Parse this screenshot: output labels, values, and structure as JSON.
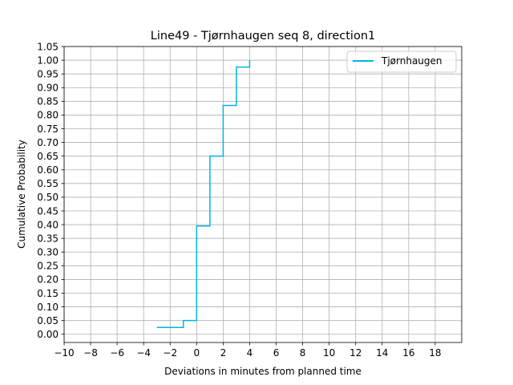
{
  "chart_data": {
    "type": "line",
    "step": true,
    "title": "Line49 - Tjørnhaugen seq 8, direction1",
    "xlabel": "Deviations in minutes from planned time",
    "ylabel": "Cumulative Probability",
    "xlim": [
      -10,
      20
    ],
    "ylim": [
      -0.03,
      1.05
    ],
    "xticks": [
      -10,
      -8,
      -6,
      -4,
      -2,
      0,
      2,
      4,
      6,
      8,
      10,
      12,
      14,
      16,
      18
    ],
    "xtick_labels": [
      "−10",
      "−8",
      "−6",
      "−4",
      "−2",
      "0",
      "2",
      "4",
      "6",
      "8",
      "10",
      "12",
      "14",
      "16",
      "18"
    ],
    "yticks": [
      0,
      0.05,
      0.1,
      0.15,
      0.2,
      0.25,
      0.3,
      0.35,
      0.4,
      0.45,
      0.5,
      0.55,
      0.6,
      0.65,
      0.7,
      0.75,
      0.8,
      0.85,
      0.9,
      0.95,
      1.0,
      1.05
    ],
    "ytick_labels": [
      "0.00",
      "0.05",
      "0.10",
      "0.15",
      "0.20",
      "0.25",
      "0.30",
      "0.35",
      "0.40",
      "0.45",
      "0.50",
      "0.55",
      "0.60",
      "0.65",
      "0.70",
      "0.75",
      "0.80",
      "0.85",
      "0.90",
      "0.95",
      "1.00",
      "1.05"
    ],
    "grid": true,
    "legend_position": "top-right",
    "series": [
      {
        "name": "Tjørnhaugen",
        "color": "#00b4e6",
        "x": [
          -3,
          -1,
          0,
          1,
          2,
          3,
          4
        ],
        "y": [
          0.025,
          0.05,
          0.395,
          0.65,
          0.835,
          0.975,
          1.0
        ]
      }
    ]
  }
}
